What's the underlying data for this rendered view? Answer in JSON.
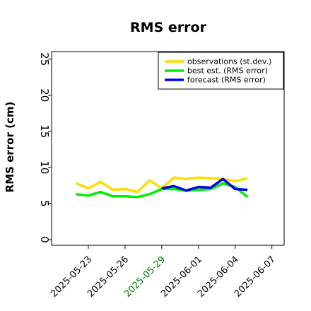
{
  "chart_data": {
    "type": "line",
    "title": "RMS error",
    "ylabel": "RMS error (cm)",
    "xlabel": "",
    "ylim": [
      0,
      26
    ],
    "xlim": [
      "2025-05-20",
      "2025-06-08"
    ],
    "yticks": [
      0,
      5,
      10,
      15,
      20,
      25
    ],
    "xticks": [
      {
        "date": "2025-05-23",
        "label": "2025-05-23",
        "color": "#000000"
      },
      {
        "date": "2025-05-26",
        "label": "2025-05-26",
        "color": "#000000"
      },
      {
        "date": "2025-05-29",
        "label": "2025-05-29",
        "color": "#008000"
      },
      {
        "date": "2025-06-01",
        "label": "2025-06-01",
        "color": "#000000"
      },
      {
        "date": "2025-06-04",
        "label": "2025-06-04",
        "color": "#000000"
      },
      {
        "date": "2025-06-07",
        "label": "2025-06-07",
        "color": "#000000"
      }
    ],
    "grid": false,
    "legend_position": "top-right",
    "series": [
      {
        "name": "observations (st.dev.)",
        "color": "#ffdd00",
        "x": [
          "2025-05-22",
          "2025-05-23",
          "2025-05-24",
          "2025-05-25",
          "2025-05-26",
          "2025-05-27",
          "2025-05-28",
          "2025-05-29",
          "2025-05-30",
          "2025-05-31",
          "2025-06-01",
          "2025-06-02",
          "2025-06-03",
          "2025-06-04",
          "2025-06-05"
        ],
        "values": [
          7.8,
          7.1,
          8.0,
          6.9,
          7.0,
          6.6,
          8.2,
          7.1,
          8.6,
          8.4,
          8.6,
          8.5,
          8.4,
          8.1,
          8.5
        ]
      },
      {
        "name": "best est. (RMS error)",
        "color": "#00ee00",
        "x": [
          "2025-05-22",
          "2025-05-23",
          "2025-05-24",
          "2025-05-25",
          "2025-05-26",
          "2025-05-27",
          "2025-05-28",
          "2025-05-29",
          "2025-05-30",
          "2025-05-31",
          "2025-06-01",
          "2025-06-02",
          "2025-06-03",
          "2025-06-04",
          "2025-06-05"
        ],
        "values": [
          6.3,
          6.1,
          6.6,
          6.0,
          6.0,
          5.9,
          6.3,
          7.0,
          7.0,
          6.8,
          6.9,
          7.0,
          7.8,
          7.3,
          5.9
        ]
      },
      {
        "name": "forecast (RMS error)",
        "color": "#0000ee",
        "x": [
          "2025-05-29",
          "2025-05-30",
          "2025-05-31",
          "2025-06-01",
          "2025-06-02",
          "2025-06-03",
          "2025-06-04",
          "2025-06-05"
        ],
        "values": [
          7.1,
          7.4,
          6.8,
          7.3,
          7.2,
          8.4,
          7.0,
          6.9
        ]
      }
    ]
  }
}
